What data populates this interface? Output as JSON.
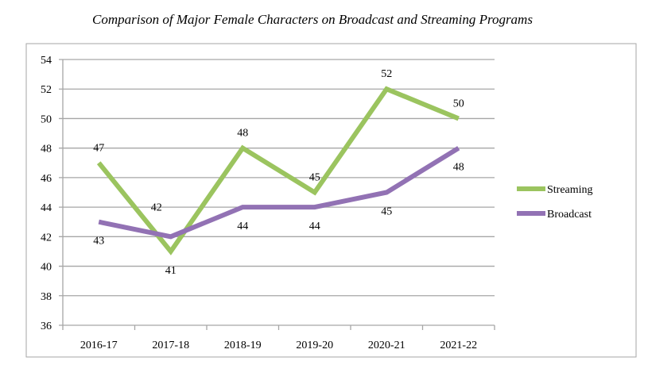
{
  "chart_data": {
    "type": "line",
    "title": "Comparison of Major Female Characters on Broadcast and Streaming Programs",
    "xlabel": "",
    "ylabel": "",
    "categories": [
      "2016-17",
      "2017-18",
      "2018-19",
      "2019-20",
      "2020-21",
      "2021-22"
    ],
    "ylim": [
      36,
      54
    ],
    "yticks": [
      36,
      38,
      40,
      42,
      44,
      46,
      48,
      50,
      52,
      54
    ],
    "grid": true,
    "legend": "right",
    "series": [
      {
        "name": "Streaming",
        "color": "#9BC45F",
        "values": [
          47,
          41,
          48,
          45,
          52,
          50
        ],
        "label_pos": [
          "above",
          "below",
          "above",
          "above",
          "above",
          "above"
        ]
      },
      {
        "name": "Broadcast",
        "color": "#9272B4",
        "values": [
          43,
          42,
          44,
          44,
          45,
          48
        ],
        "label_pos": [
          "below",
          "above-left",
          "below",
          "below",
          "below",
          "below"
        ]
      }
    ]
  }
}
